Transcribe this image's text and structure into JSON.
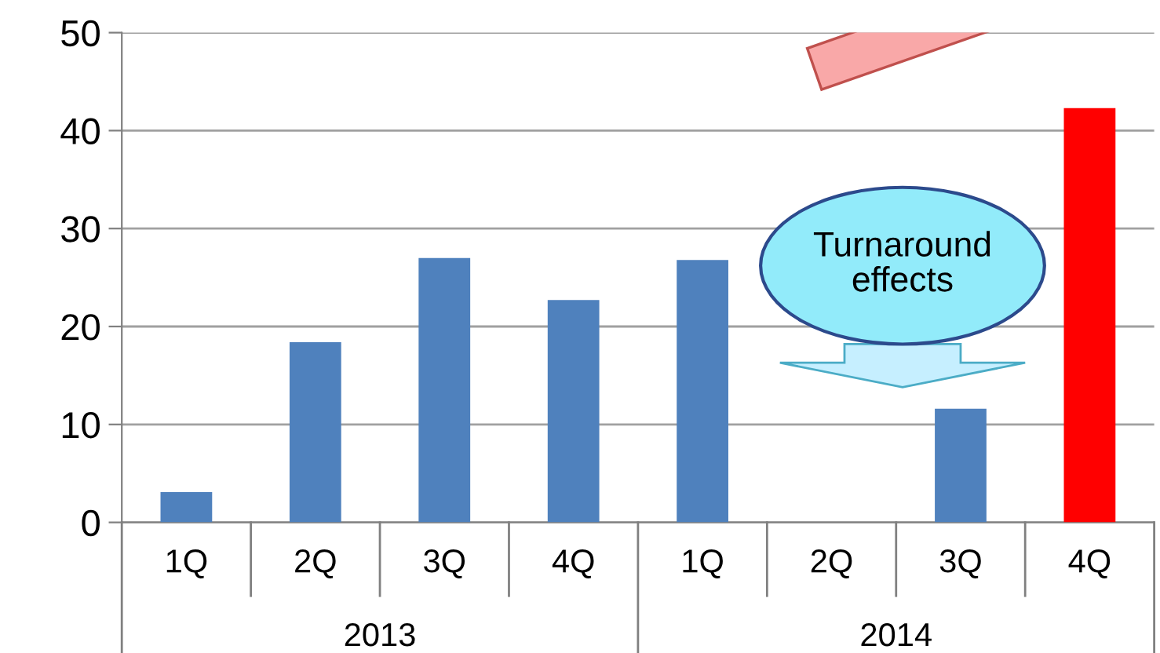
{
  "chart_data": {
    "type": "bar",
    "categories": [
      "1Q",
      "2Q",
      "3Q",
      "4Q",
      "1Q",
      "2Q",
      "3Q",
      "4Q"
    ],
    "values": [
      3.1,
      18.4,
      27.0,
      22.7,
      26.8,
      null,
      11.6,
      42.3
    ],
    "colors": [
      "#4f81bd",
      "#4f81bd",
      "#4f81bd",
      "#4f81bd",
      "#4f81bd",
      "#4f81bd",
      "#4f81bd",
      "#ff0000"
    ],
    "ylim": [
      0,
      50
    ],
    "yticks": [
      0,
      10,
      20,
      30,
      40,
      50
    ],
    "grid": "y",
    "annotations": [
      "2013",
      "2014",
      "Turnaround effects"
    ]
  }
}
